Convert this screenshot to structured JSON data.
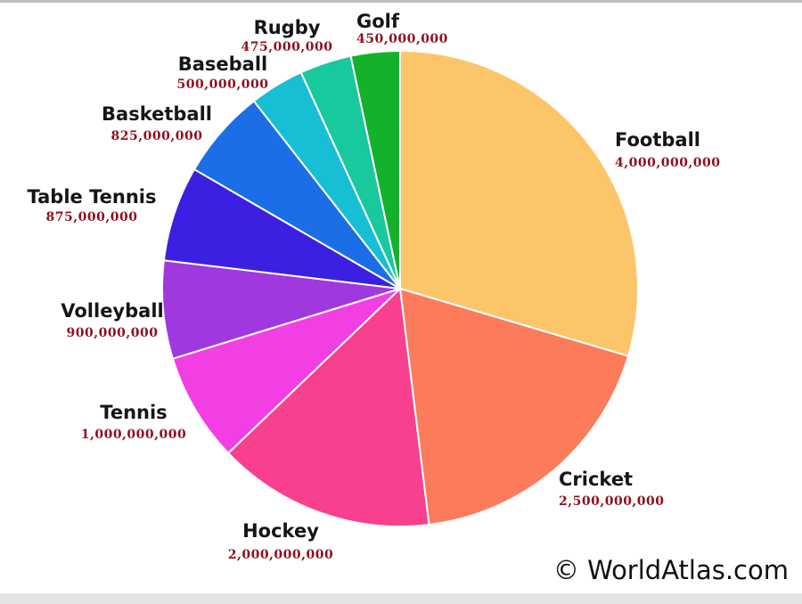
{
  "chart_data": {
    "type": "pie",
    "categories": [
      "Football",
      "Cricket",
      "Hockey",
      "Tennis",
      "Volleyball",
      "Table Tennis",
      "Basketball",
      "Baseball",
      "Rugby",
      "Golf"
    ],
    "values": [
      4000000000,
      2500000000,
      2000000000,
      1000000000,
      900000000,
      875000000,
      825000000,
      500000000,
      475000000,
      450000000
    ],
    "value_labels": [
      "4,000,000,000",
      "2,500,000,000",
      "2,000,000,000",
      "1,000,000,000",
      "900,000,000",
      "875,000,000",
      "825,000,000",
      "500,000,000",
      "475,000,000",
      "450,000,000"
    ],
    "colors": [
      "#fdc56a",
      "#fb7b5b",
      "#f8408f",
      "#f23fe4",
      "#a038df",
      "#3b20e2",
      "#1b6ee6",
      "#17bfd5",
      "#18c99e",
      "#14b22b"
    ],
    "source": "© WorldAtlas.com"
  }
}
